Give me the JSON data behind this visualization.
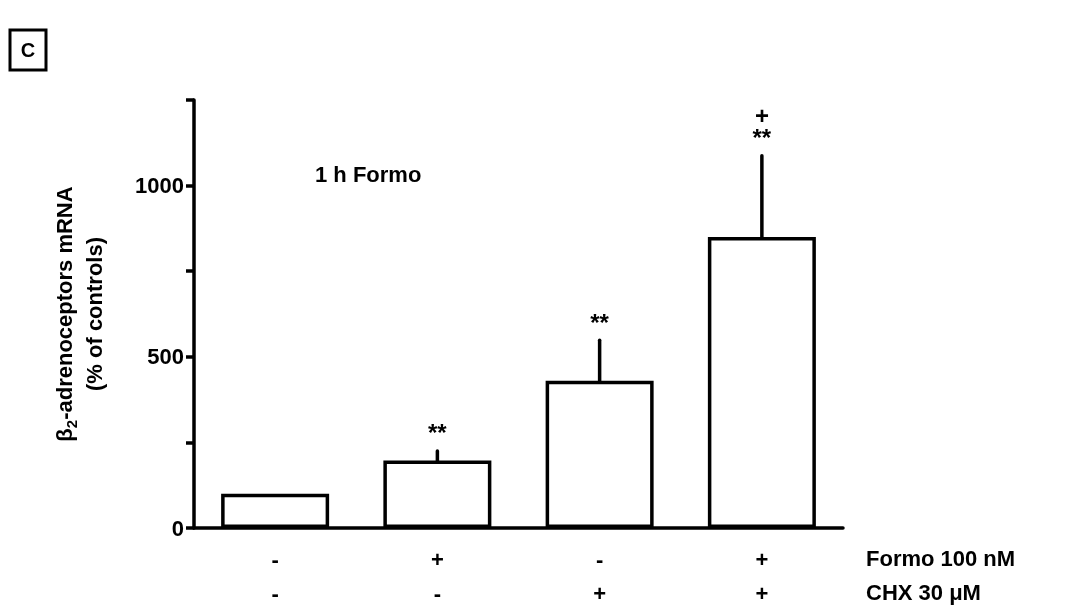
{
  "chart_data": {
    "type": "bar",
    "title": "1 h Formo",
    "ylabel": "β$_{2}$-adrenoceptors mRNA\n(% of controls)",
    "categories": [
      "-\n-",
      "+\n-",
      "-\n+",
      "+\n+"
    ],
    "series": [
      {
        "color": "#ffffff",
        "values": [
          100,
          197,
          430,
          850
        ],
        "errors": [
          null,
          [
            197,
            225
          ],
          [
            430,
            548
          ],
          [
            850,
            1087
          ]
        ]
      }
    ],
    "ylim": [
      0,
      1250
    ],
    "yticks": [
      0,
      {
        "value": 250,
        "label": null
      },
      500,
      {
        "value": 750,
        "label": null
      },
      1000,
      {
        "value": 1250,
        "label": null
      }
    ],
    "annotations": [
      "C",
      "Formo 100 nM",
      "CHX 30 μM",
      {
        "text": "**",
        "x": "+\n-",
        "y": 225
      },
      {
        "text": "**",
        "x": "-\n+",
        "y": 548
      },
      {
        "text": "**",
        "x": "+\n+",
        "y": 1087
      },
      {
        "text": "+",
        "x": "+\n+",
        "y": 1087
      }
    ]
  }
}
